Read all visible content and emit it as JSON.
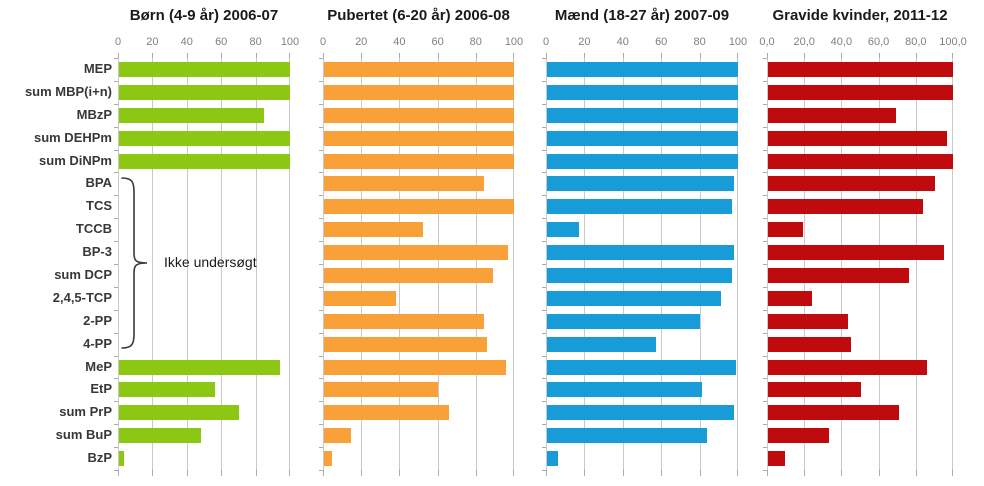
{
  "chart_data": {
    "type": "bar",
    "orientation": "horizontal",
    "title": "",
    "xlim": [
      0,
      100
    ],
    "grid": true,
    "categories": [
      "MEP",
      "sum MBP(i+n)",
      "MBzP",
      "sum DEHPm",
      "sum DiNPm",
      "BPA",
      "TCS",
      "TCCB",
      "BP-3",
      "sum DCP",
      "2,4,5-TCP",
      "2-PP",
      "4-PP",
      "MeP",
      "EtP",
      "sum PrP",
      "sum BuP",
      "BzP"
    ],
    "panels": [
      {
        "title": "Børn (4-9 år) 2006-07",
        "color": "#8cc714",
        "tick_labels": [
          "0",
          "20",
          "40",
          "60",
          "80",
          "100"
        ],
        "values": [
          100,
          100,
          85,
          100,
          100,
          null,
          null,
          null,
          null,
          null,
          null,
          null,
          null,
          94,
          56,
          70,
          48,
          3
        ]
      },
      {
        "title": "Pubertet (6-20 år) 2006-08",
        "color": "#f9a139",
        "tick_labels": [
          "0",
          "20",
          "40",
          "60",
          "80",
          "100"
        ],
        "values": [
          100,
          100,
          100,
          100,
          100,
          84,
          100,
          52,
          97,
          89,
          38,
          84,
          86,
          96,
          60,
          66,
          14,
          4
        ]
      },
      {
        "title": "Mænd (18-27 år) 2007-09",
        "color": "#189cd8",
        "tick_labels": [
          "0",
          "20",
          "40",
          "60",
          "80",
          "100"
        ],
        "values": [
          100,
          100,
          100,
          100,
          100,
          98,
          97,
          17,
          98,
          97,
          91,
          80,
          57,
          99,
          81,
          98,
          84,
          6
        ]
      },
      {
        "title": "Gravide kvinder, 2011-12",
        "color": "#c00b0e",
        "tick_labels": [
          "0,0",
          "20,0",
          "40,0",
          "60,0",
          "80,0",
          "100,0"
        ],
        "values": [
          100,
          100,
          69,
          97,
          100,
          90,
          84,
          19,
          95,
          76,
          24,
          43,
          45,
          86,
          50,
          71,
          33,
          9
        ]
      }
    ],
    "annotation": {
      "text": "Ikke undersøgt",
      "panel_index": 0,
      "row_span": [
        5,
        12
      ]
    }
  }
}
